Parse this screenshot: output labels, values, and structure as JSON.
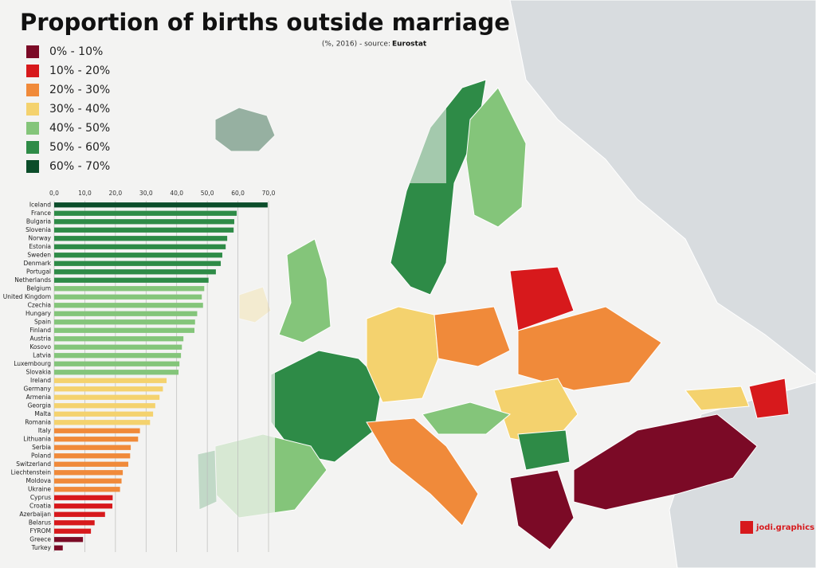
{
  "chart_data": {
    "type": "bar",
    "orientation": "horizontal",
    "title": "Proportion of births outside marriage",
    "subtitle": "(%, 2016) - source:",
    "source": "Eurostat",
    "credit": "jodi.graphics",
    "legend": [
      {
        "label": "0% - 10%",
        "color": "#7b0a26"
      },
      {
        "label": "10% - 20%",
        "color": "#d7191c"
      },
      {
        "label": "20% - 30%",
        "color": "#f08a3a"
      },
      {
        "label": "30% - 40%",
        "color": "#f4d26e"
      },
      {
        "label": "40% - 50%",
        "color": "#84c57a"
      },
      {
        "label": "50% - 60%",
        "color": "#2e8b47"
      },
      {
        "label": "60% - 70%",
        "color": "#0b4d2a"
      }
    ],
    "categories": [
      "Iceland",
      "France",
      "Bulgaria",
      "Slovenia",
      "Norway",
      "Estonia",
      "Sweden",
      "Denmark",
      "Portugal",
      "Netherlands",
      "Belgium",
      "United Kingdom",
      "Czechia",
      "Hungary",
      "Spain",
      "Finland",
      "Austria",
      "Kosovo",
      "Latvia",
      "Luxembourg",
      "Slovakia",
      "Ireland",
      "Germany",
      "Armenia",
      "Georgia",
      "Malta",
      "Romania",
      "Italy",
      "Lithuania",
      "Serbia",
      "Poland",
      "Switzerland",
      "Liechtenstein",
      "Moldova",
      "Ukraine",
      "Cyprus",
      "Croatia",
      "Azerbaijan",
      "Belarus",
      "FYROM",
      "Greece",
      "Turkey"
    ],
    "values": [
      69.7,
      59.6,
      58.8,
      58.6,
      56.5,
      56.0,
      54.9,
      54.4,
      52.8,
      50.4,
      49.0,
      48.2,
      48.6,
      46.7,
      46.0,
      45.8,
      42.2,
      41.7,
      41.4,
      40.9,
      40.6,
      36.7,
      35.5,
      34.4,
      33.0,
      32.3,
      31.3,
      28.0,
      27.4,
      25.0,
      24.8,
      24.2,
      22.4,
      22.0,
      21.5,
      19.1,
      19.0,
      16.6,
      13.2,
      12.0,
      9.4,
      2.8
    ],
    "colors": [
      "#0b4d2a",
      "#2e8b47",
      "#2e8b47",
      "#2e8b47",
      "#2e8b47",
      "#2e8b47",
      "#2e8b47",
      "#2e8b47",
      "#2e8b47",
      "#2e8b47",
      "#84c57a",
      "#84c57a",
      "#84c57a",
      "#84c57a",
      "#84c57a",
      "#84c57a",
      "#84c57a",
      "#84c57a",
      "#84c57a",
      "#84c57a",
      "#84c57a",
      "#f4d26e",
      "#f4d26e",
      "#f4d26e",
      "#f4d26e",
      "#f4d26e",
      "#f4d26e",
      "#f08a3a",
      "#f08a3a",
      "#f08a3a",
      "#f08a3a",
      "#f08a3a",
      "#f08a3a",
      "#f08a3a",
      "#f08a3a",
      "#d7191c",
      "#d7191c",
      "#d7191c",
      "#d7191c",
      "#d7191c",
      "#7b0a26",
      "#7b0a26"
    ],
    "xlim": [
      0,
      70
    ],
    "xticks": [
      {
        "value": 0,
        "label": "0,0"
      },
      {
        "value": 10,
        "label": "10,0"
      },
      {
        "value": 20,
        "label": "20,0"
      },
      {
        "value": 30,
        "label": "30,0"
      },
      {
        "value": 40,
        "label": "40,0"
      },
      {
        "value": 50,
        "label": "50,0"
      },
      {
        "value": 60,
        "label": "60,0"
      },
      {
        "value": 70,
        "label": "70,0"
      }
    ],
    "grid": true
  }
}
